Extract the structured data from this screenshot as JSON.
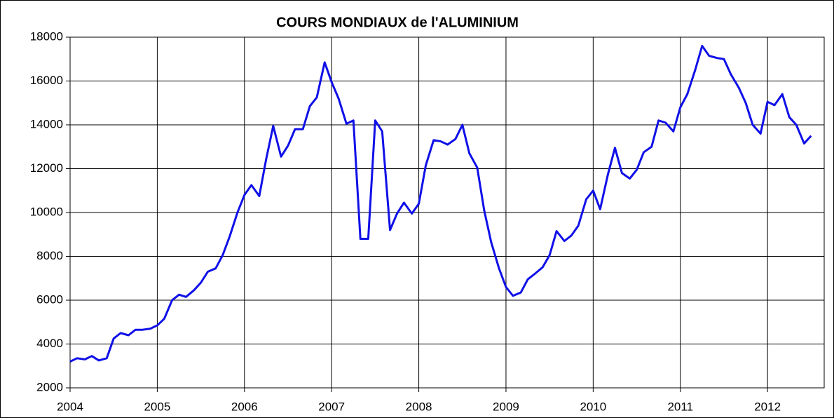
{
  "chart_data": {
    "type": "line",
    "title": "COURS MONDIAUX de l'ALUMINIUM",
    "x": [
      2004,
      2004.08,
      2004.17,
      2004.25,
      2004.33,
      2004.42,
      2004.5,
      2004.58,
      2004.67,
      2004.75,
      2004.83,
      2004.92,
      2005,
      2005.08,
      2005.17,
      2005.25,
      2005.33,
      2005.42,
      2005.5,
      2005.58,
      2005.67,
      2005.75,
      2005.83,
      2005.92,
      2006,
      2006.08,
      2006.17,
      2006.25,
      2006.33,
      2006.42,
      2006.5,
      2006.58,
      2006.67,
      2006.75,
      2006.83,
      2006.92,
      2007,
      2007.08,
      2007.17,
      2007.25,
      2007.33,
      2007.42,
      2007.5,
      2007.58,
      2007.67,
      2007.75,
      2007.83,
      2007.92,
      2008,
      2008.08,
      2008.17,
      2008.25,
      2008.33,
      2008.42,
      2008.5,
      2008.58,
      2008.67,
      2008.75,
      2008.83,
      2008.92,
      2009,
      2009.08,
      2009.17,
      2009.25,
      2009.33,
      2009.42,
      2009.5,
      2009.58,
      2009.67,
      2009.75,
      2009.83,
      2009.92,
      2010,
      2010.08,
      2010.17,
      2010.25,
      2010.33,
      2010.42,
      2010.5,
      2010.58,
      2010.67,
      2010.75,
      2010.83,
      2010.92,
      2011,
      2011.08,
      2011.17,
      2011.25,
      2011.33,
      2011.42,
      2011.5,
      2011.58,
      2011.67,
      2011.75,
      2011.83,
      2011.92,
      2012,
      2012.08,
      2012.17,
      2012.25,
      2012.33,
      2012.42,
      2012.5
    ],
    "series": [
      {
        "color": "#1010e8",
        "values": [
          3200,
          3350,
          3300,
          3450,
          3250,
          3350,
          4250,
          4500,
          4400,
          4650,
          4650,
          4700,
          4850,
          5150,
          6000,
          6250,
          6150,
          6450,
          6800,
          7300,
          7450,
          8050,
          8900,
          10000,
          10800,
          11250,
          10750,
          12450,
          13950,
          12550,
          13050,
          13800,
          13800,
          14850,
          15250,
          16850,
          15950,
          15200,
          14050,
          14200,
          8800,
          8800,
          14200,
          13700,
          9200,
          9950,
          10450,
          9950,
          10400,
          12150,
          13300,
          13250,
          13100,
          13350,
          14000,
          12700,
          12050,
          10100,
          8650,
          7450,
          6600,
          6200,
          6350,
          6950,
          7200,
          7500,
          8050,
          9150,
          8700,
          8950,
          9400,
          10600,
          11000,
          10150,
          11750,
          12950,
          11800,
          11550,
          11950,
          12750,
          13000,
          14200,
          14100,
          13700,
          14800,
          15400,
          16500,
          17600,
          17150,
          17050,
          17000,
          16300,
          15700,
          15000,
          14000,
          13600,
          15050,
          14900,
          15400,
          14350,
          14000,
          13150,
          13500
        ]
      }
    ],
    "xlim": [
      2004,
      2012.65
    ],
    "xticks": [
      2004,
      2005,
      2006,
      2007,
      2008,
      2009,
      2010,
      2011,
      2012
    ],
    "ylim": [
      2000,
      18000
    ],
    "yticks": [
      2000,
      4000,
      6000,
      8000,
      10000,
      12000,
      14000,
      16000,
      18000
    ],
    "grid": true
  }
}
